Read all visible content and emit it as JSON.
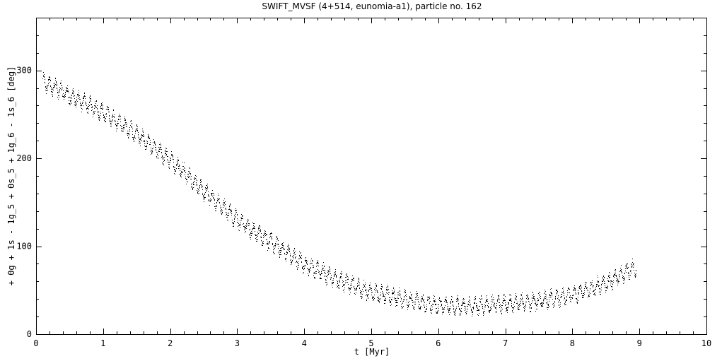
{
  "chart_data": {
    "type": "scatter",
    "title": "SWIFT_MVSF (4+514, eunomia-a1), particle no. 162",
    "xlabel": "t [Myr]",
    "ylabel": "+ 0g + 1s - 1g_5 + 0s_5 + 1g_6 - 1s_6 [deg]",
    "xlim": [
      0,
      10
    ],
    "ylim": [
      0,
      360
    ],
    "xticks": [
      "0",
      "1",
      "2",
      "3",
      "4",
      "5",
      "6",
      "7",
      "8",
      "9",
      "10"
    ],
    "yticks": [
      "0",
      "100",
      "200",
      "300"
    ],
    "grid": false,
    "trend": {
      "t": [
        0.1,
        0.5,
        1.0,
        1.5,
        2.0,
        2.5,
        3.0,
        3.5,
        4.0,
        4.5,
        5.0,
        5.5,
        6.0,
        6.5,
        7.0,
        7.5,
        8.0,
        8.5,
        8.95
      ],
      "angle": [
        287,
        272,
        252,
        228,
        198,
        163,
        130,
        105,
        80,
        62,
        48,
        40,
        33,
        32,
        35,
        38,
        45,
        58,
        77
      ],
      "scatter_half_width": 10
    }
  }
}
